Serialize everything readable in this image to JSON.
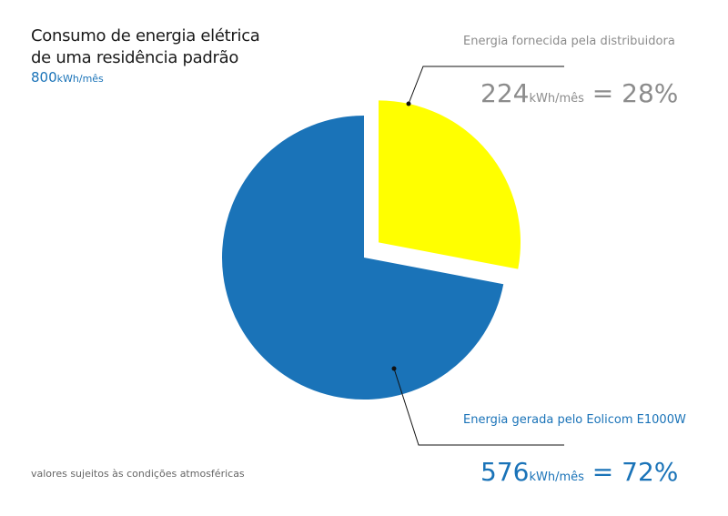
{
  "title_line1": "Consumo de energia elétrica",
  "title_line2": "de uma residência padrão",
  "total": {
    "value": "800",
    "unit": "kWh/mês"
  },
  "footnote": "valores sujeitos às condições atmosféricas",
  "chart_data": {
    "type": "pie",
    "slices": [
      {
        "label": "Energia fornecida pela distribuidora",
        "value": 224,
        "unit": "kWh/mês",
        "percent": "28%",
        "color": "#ffff00",
        "exploded": true
      },
      {
        "label": "Energia gerada pelo Eolicom E1000W",
        "value": 576,
        "unit": "kWh/mês",
        "percent": "72%",
        "color": "#1a73b8",
        "exploded": false
      }
    ]
  },
  "labels": {
    "supplier": {
      "name": "Energia fornecida pela distribuidora",
      "value": "224",
      "unit": "kWh/mês",
      "equals": "=",
      "percent": "28%"
    },
    "generated": {
      "name": "Energia gerada pelo Eolicom E1000W",
      "value": "576",
      "unit": "kWh/mês",
      "equals": "=",
      "percent": "72%"
    }
  },
  "colors": {
    "supplier": "#ffff00",
    "generated": "#1a73b8",
    "text_grey": "#8c8c8c"
  }
}
